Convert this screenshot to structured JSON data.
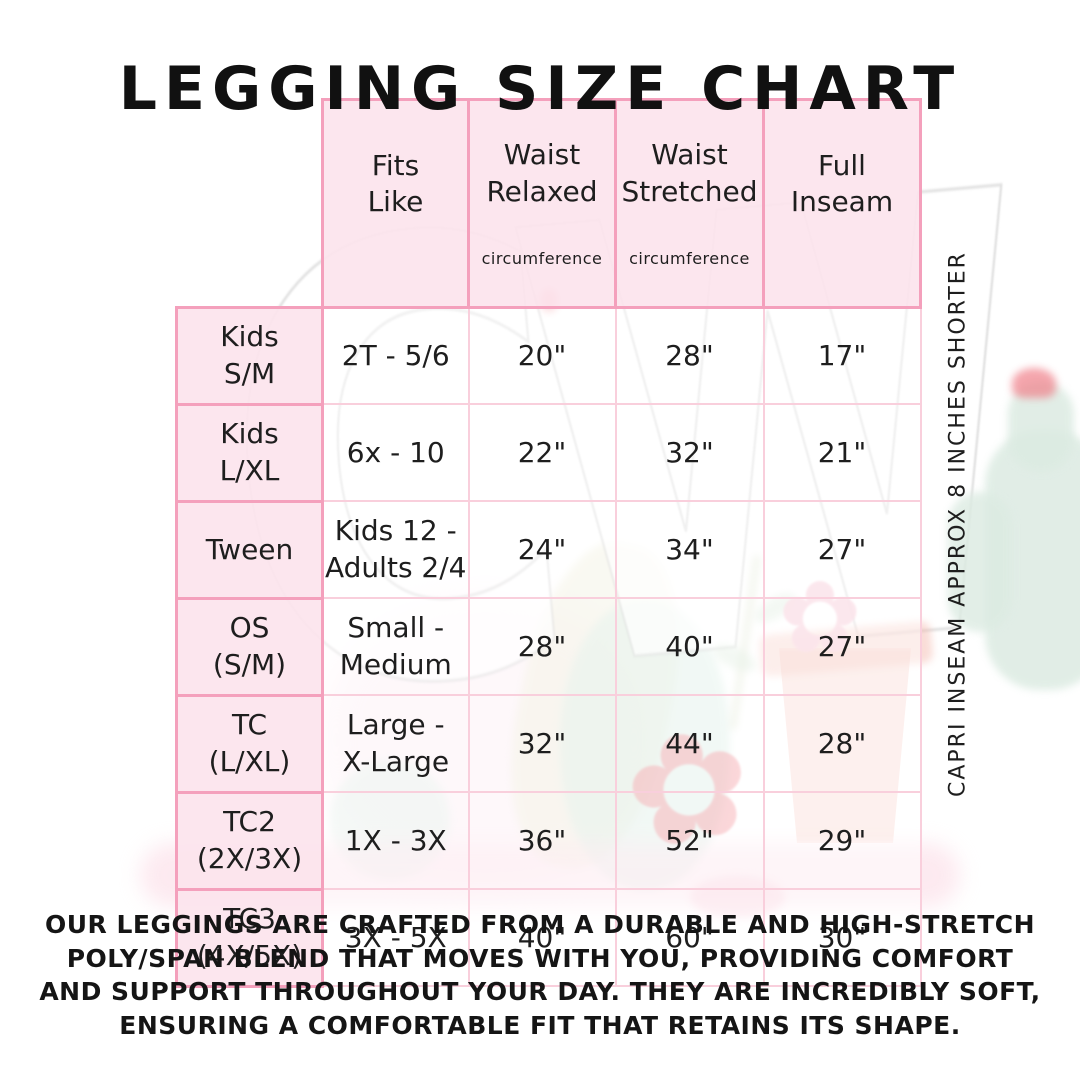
{
  "title": "LEGGING SIZE CHART",
  "table": {
    "headers": [
      {
        "label": "Fits\nLike",
        "sub": ""
      },
      {
        "label": "Waist\nRelaxed",
        "sub": "circumference"
      },
      {
        "label": "Waist\nStretched",
        "sub": "circumference"
      },
      {
        "label": "Full\nInseam",
        "sub": ""
      }
    ],
    "rows": [
      {
        "size": "Kids\nS/M",
        "fits_like": "2T - 5/6",
        "waist_relaxed": "20\"",
        "waist_stretched": "28\"",
        "full_inseam": "17\""
      },
      {
        "size": "Kids\nL/XL",
        "fits_like": "6x - 10",
        "waist_relaxed": "22\"",
        "waist_stretched": "32\"",
        "full_inseam": "21\""
      },
      {
        "size": "Tween",
        "fits_like": "Kids 12 -\nAdults 2/4",
        "waist_relaxed": "24\"",
        "waist_stretched": "34\"",
        "full_inseam": "27\""
      },
      {
        "size": "OS\n(S/M)",
        "fits_like": "Small -\nMedium",
        "waist_relaxed": "28\"",
        "waist_stretched": "40\"",
        "full_inseam": "27\""
      },
      {
        "size": "TC\n(L/XL)",
        "fits_like": "Large -\nX-Large",
        "waist_relaxed": "32\"",
        "waist_stretched": "44\"",
        "full_inseam": "28\""
      },
      {
        "size": "TC2\n(2X/3X)",
        "fits_like": "1X - 3X",
        "waist_relaxed": "36\"",
        "waist_stretched": "52\"",
        "full_inseam": "29\""
      },
      {
        "size": "TC3\n(4X/5X)",
        "fits_like": "3X - 5X",
        "waist_relaxed": "40\"",
        "waist_stretched": "60\"",
        "full_inseam": "30\""
      }
    ]
  },
  "side_note": "CAPRI INSEAM APPROX 8 INCHES SHORTER",
  "footer_text": "OUR LEGGINGS ARE CRAFTED FROM A DURABLE AND HIGH-STRETCH\nPOLY/SPAN BLEND THAT MOVES WITH YOU, PROVIDING COMFORT\nAND SUPPORT THROUGHOUT YOUR DAY. THEY ARE INCREDIBLY SOFT,\nENSURING A COMFORTABLE FIT THAT RETAINS ITS SHAPE.",
  "watermark": {
    "monogram": "CW",
    "flower_glyph": "✿"
  },
  "colors": {
    "text": "#1e1e1e",
    "cell_fill_pink": "#fce4ed",
    "cell_border_pink": "#f4a0bc",
    "grid_line_pink": "#f9cfdc",
    "watermark_mint": "#dcebe2",
    "watermark_coral": "#f3b3a7",
    "watermark_red": "#ee5f6a",
    "watermark_flower_pink": "#f7cad7"
  }
}
